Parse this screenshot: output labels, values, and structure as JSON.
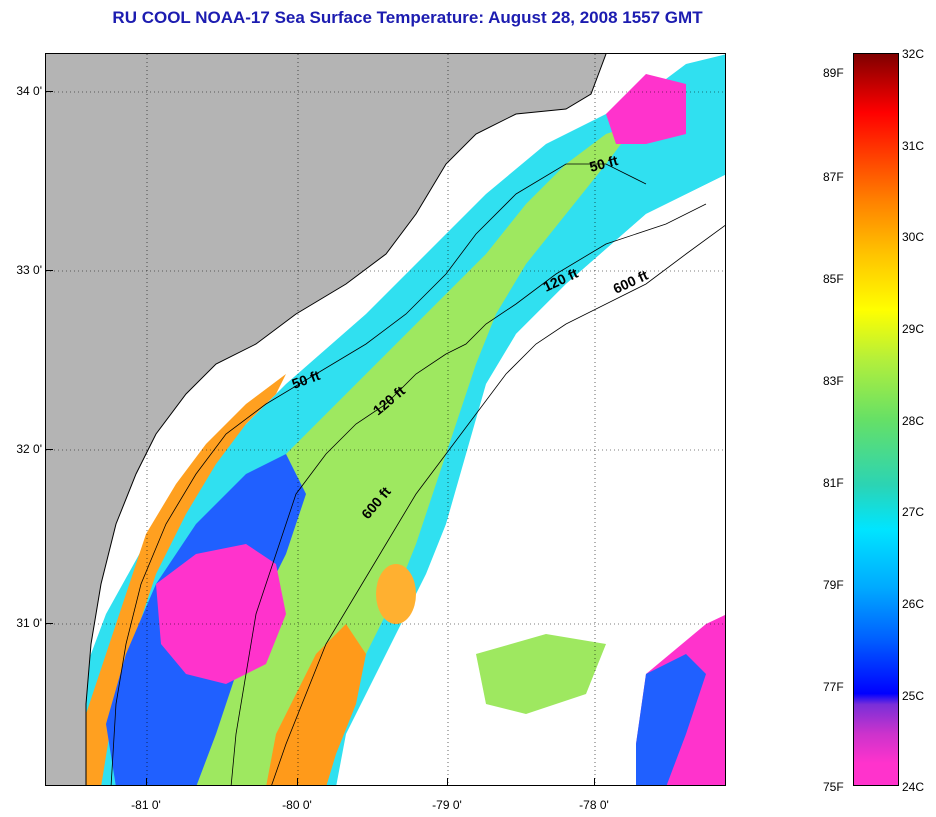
{
  "title": "RU COOL  NOAA-17  Sea Surface Temperature:  August 28, 2008 1557 GMT",
  "map": {
    "lat_labels": [
      "34 0'",
      "33 0'",
      "32 0'",
      "31 0'"
    ],
    "lon_labels": [
      "-81 0'",
      "-80 0'",
      "-79 0'",
      "-78 0'"
    ],
    "contour_labels": [
      "50 ft",
      "120 ft",
      "600 ft",
      "50 ft",
      "120 ft",
      "600 ft"
    ],
    "colors": {
      "land": "#b4b4b4",
      "clouds": "#ffffff",
      "warm": "#ffa020",
      "mid": "#9ee860",
      "cool": "#30e0f0",
      "cold": "#2060ff",
      "coldest": "#ff33cc"
    }
  },
  "colorbar": {
    "celsius_labels": [
      "32C",
      "31C",
      "30C",
      "29C",
      "28C",
      "27C",
      "26C",
      "25C",
      "24C"
    ],
    "fahrenheit_labels": [
      "89F",
      "87F",
      "85F",
      "83F",
      "81F",
      "79F",
      "77F",
      "75F"
    ],
    "range_c": [
      24,
      32
    ],
    "range_f": [
      75,
      89.6
    ]
  }
}
